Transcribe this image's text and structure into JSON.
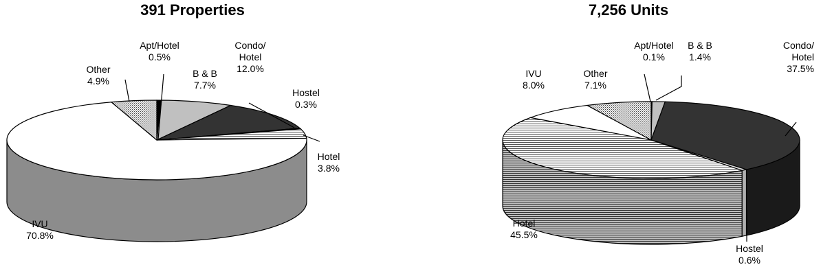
{
  "chart_data": [
    {
      "type": "pie",
      "title": "391 Properties",
      "slices": [
        {
          "name": "Apt/Hotel",
          "value": 0.5,
          "label_lines": [
            "Apt/Hotel",
            "0.5%"
          ],
          "top": "#000000",
          "side": "#000000",
          "pattern": "solid"
        },
        {
          "name": "B & B",
          "value": 7.7,
          "label_lines": [
            "B & B",
            "7.7%"
          ],
          "top": "#c0c0c0",
          "side": "#909090",
          "pattern": "solid"
        },
        {
          "name": "Condo/Hotel",
          "value": 12.0,
          "label_lines": [
            "Condo/",
            "Hotel",
            "12.0%"
          ],
          "top": "#333333",
          "side": "#1a1a1a",
          "pattern": "solid"
        },
        {
          "name": "Hostel",
          "value": 0.3,
          "label_lines": [
            "Hostel",
            "0.3%"
          ],
          "top": "#e0e0e0",
          "side": "#b0b0b0",
          "pattern": "solid"
        },
        {
          "name": "Hotel",
          "value": 3.8,
          "label_lines": [
            "Hotel",
            "3.8%"
          ],
          "top": "#d8d8d8",
          "side": "#a0a0a0",
          "pattern": "hstripe"
        },
        {
          "name": "IVU",
          "value": 70.8,
          "label_lines": [
            "IVU",
            "70.8%"
          ],
          "top": "#ffffff",
          "side": "#8c8c8c",
          "pattern": "solid"
        },
        {
          "name": "Other",
          "value": 4.9,
          "label_lines": [
            "Other",
            "4.9%"
          ],
          "top": "#bdbdbd",
          "side": "#8a8a8a",
          "pattern": "dots"
        }
      ]
    },
    {
      "type": "pie",
      "title": "7,256 Units",
      "slices": [
        {
          "name": "Apt/Hotel",
          "value": 0.1,
          "label_lines": [
            "Apt/Hotel",
            "0.1%"
          ],
          "top": "#000000",
          "side": "#000000",
          "pattern": "solid"
        },
        {
          "name": "B & B",
          "value": 1.4,
          "label_lines": [
            "B & B",
            "1.4%"
          ],
          "top": "#c0c0c0",
          "side": "#909090",
          "pattern": "solid"
        },
        {
          "name": "Condo/Hotel",
          "value": 37.5,
          "label_lines": [
            "Condo/",
            "Hotel",
            "37.5%"
          ],
          "top": "#333333",
          "side": "#1a1a1a",
          "pattern": "solid"
        },
        {
          "name": "Hostel",
          "value": 0.6,
          "label_lines": [
            "Hostel",
            "0.6%"
          ],
          "top": "#e0e0e0",
          "side": "#b0b0b0",
          "pattern": "solid"
        },
        {
          "name": "Hotel",
          "value": 45.5,
          "label_lines": [
            "Hotel",
            "45.5%"
          ],
          "top": "#d8d8d8",
          "side": "#7a7a7a",
          "pattern": "hstripe"
        },
        {
          "name": "IVU",
          "value": 8.0,
          "label_lines": [
            "IVU",
            "8.0%"
          ],
          "top": "#ffffff",
          "side": "#8c8c8c",
          "pattern": "solid"
        },
        {
          "name": "Other",
          "value": 7.1,
          "label_lines": [
            "Other",
            "7.1%"
          ],
          "top": "#bdbdbd",
          "side": "#8a8a8a",
          "pattern": "dots"
        }
      ]
    }
  ]
}
